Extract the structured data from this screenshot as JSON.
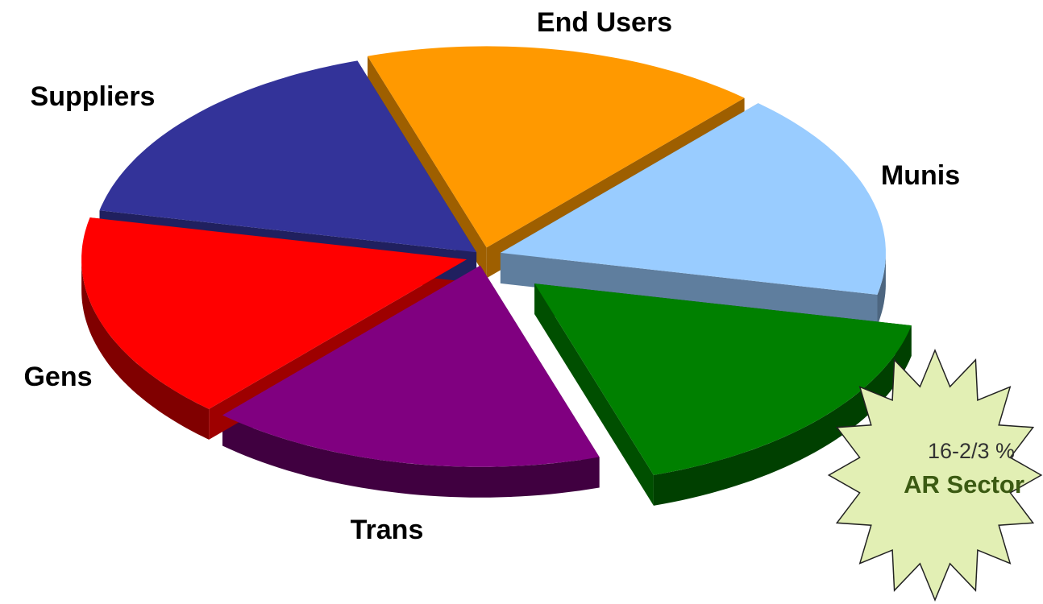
{
  "chart_data": {
    "type": "pie",
    "categories": [
      "End Users",
      "Munis",
      null,
      "Trans",
      "Gens",
      "Suppliers"
    ],
    "values": [
      16.67,
      16.67,
      16.67,
      16.67,
      16.67,
      16.67
    ],
    "colors": [
      "#ff9900",
      "#99ccff",
      "#008000",
      "#800080",
      "#ff0000",
      "#333399"
    ],
    "annotations": [
      "16-2/3 %",
      "AR Sector"
    ]
  }
}
